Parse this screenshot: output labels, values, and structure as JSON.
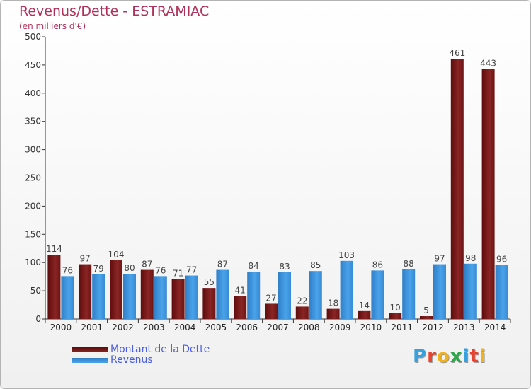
{
  "title": "Revenus/Dette - ESTRAMIAC",
  "subtitle": "(en milliers d'€)",
  "logo_text": "Proxiti",
  "chart_data": {
    "type": "bar",
    "categories": [
      "2000",
      "2001",
      "2002",
      "2003",
      "2004",
      "2005",
      "2006",
      "2007",
      "2008",
      "2009",
      "2010",
      "2011",
      "2012",
      "2013",
      "2014"
    ],
    "series": [
      {
        "name": "Montant de la Dette",
        "color": "#7a1a1a",
        "values": [
          114,
          97,
          104,
          87,
          71,
          55,
          41,
          27,
          22,
          18,
          14,
          10,
          5,
          461,
          443
        ]
      },
      {
        "name": "Revenus",
        "color": "#3d95dd",
        "values": [
          76,
          79,
          80,
          76,
          77,
          87,
          84,
          83,
          85,
          103,
          86,
          88,
          97,
          98,
          96
        ]
      }
    ],
    "ylim": [
      0,
      500
    ],
    "yticks": [
      0,
      50,
      100,
      150,
      200,
      250,
      300,
      350,
      400,
      450,
      500
    ],
    "grid": false,
    "legend_position": "bottom-left"
  },
  "legend": {
    "items": [
      {
        "label": "Montant de la Dette",
        "color": "#7a1a1a"
      },
      {
        "label": "Revenus",
        "color": "#3d95dd"
      }
    ]
  }
}
